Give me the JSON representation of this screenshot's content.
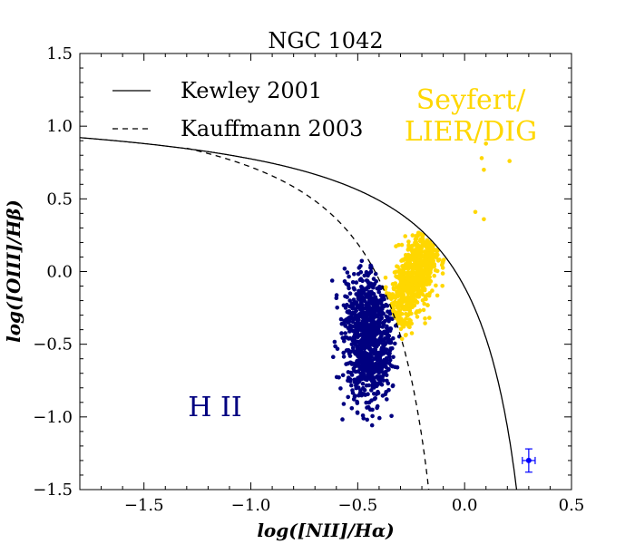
{
  "chart_data": {
    "type": "scatter",
    "title": "NGC 1042",
    "xlabel": "log([NII]/Hα)",
    "ylabel": "log([OIII]/Hβ)",
    "xlim": [
      -1.8,
      0.5
    ],
    "ylim": [
      -1.5,
      1.5
    ],
    "x_ticks": [
      "−1.5",
      "−1.0",
      "−0.5",
      "0.0",
      "0.5"
    ],
    "x_tick_values": [
      -1.5,
      -1.0,
      -0.5,
      0.0,
      0.5
    ],
    "y_ticks": [
      "1.5",
      "1.0",
      "0.5",
      "0.0",
      "−0.5",
      "−1.0",
      "−1.5"
    ],
    "y_tick_values": [
      1.5,
      1.0,
      0.5,
      0.0,
      -0.5,
      -1.0,
      -1.5
    ],
    "grid": false,
    "legend": {
      "placement": "top-left",
      "entries": [
        {
          "label": "Kewley 2001",
          "style": "solid"
        },
        {
          "label": "Kauffmann 2003",
          "style": "dashed"
        }
      ]
    },
    "lines": [
      {
        "name": "Kewley 2001",
        "formula": "0.61/(x-0.47)+1.19",
        "style": "solid",
        "color": "#000000"
      },
      {
        "name": "Kauffmann 2003",
        "formula": "0.61/(x-0.05)+1.3",
        "style": "dashed",
        "color": "#000000"
      }
    ],
    "region_labels": [
      {
        "text": "H II",
        "color": "#000080",
        "x": -1.15,
        "y": -0.95
      },
      {
        "text": "Seyfert/",
        "color": "#FFD700",
        "x": -0.15,
        "y": 1.05
      },
      {
        "text": "LIER/DIG",
        "color": "#FFD700",
        "x": -0.15,
        "y": 0.82
      }
    ],
    "series": [
      {
        "name": "H II",
        "color": "#000080",
        "cluster": {
          "center": [
            -0.45,
            -0.45
          ],
          "x_range": [
            -0.7,
            -0.33
          ],
          "y_range": [
            -1.05,
            0.05
          ]
        }
      },
      {
        "name": "Seyfert/LIER/DIG",
        "color": "#FFD700",
        "cluster": {
          "center": [
            -0.22,
            0.0
          ],
          "x_range": [
            -0.38,
            0.25
          ],
          "y_range": [
            -0.55,
            0.9
          ]
        }
      }
    ],
    "error_bar": {
      "x": 0.3,
      "y": -1.3,
      "xerr": 0.03,
      "yerr": 0.08,
      "color": "#0000FF"
    },
    "colors": {
      "hii": "#000080",
      "seyfert": "#FFD700",
      "errorbar": "#0000FF"
    }
  }
}
